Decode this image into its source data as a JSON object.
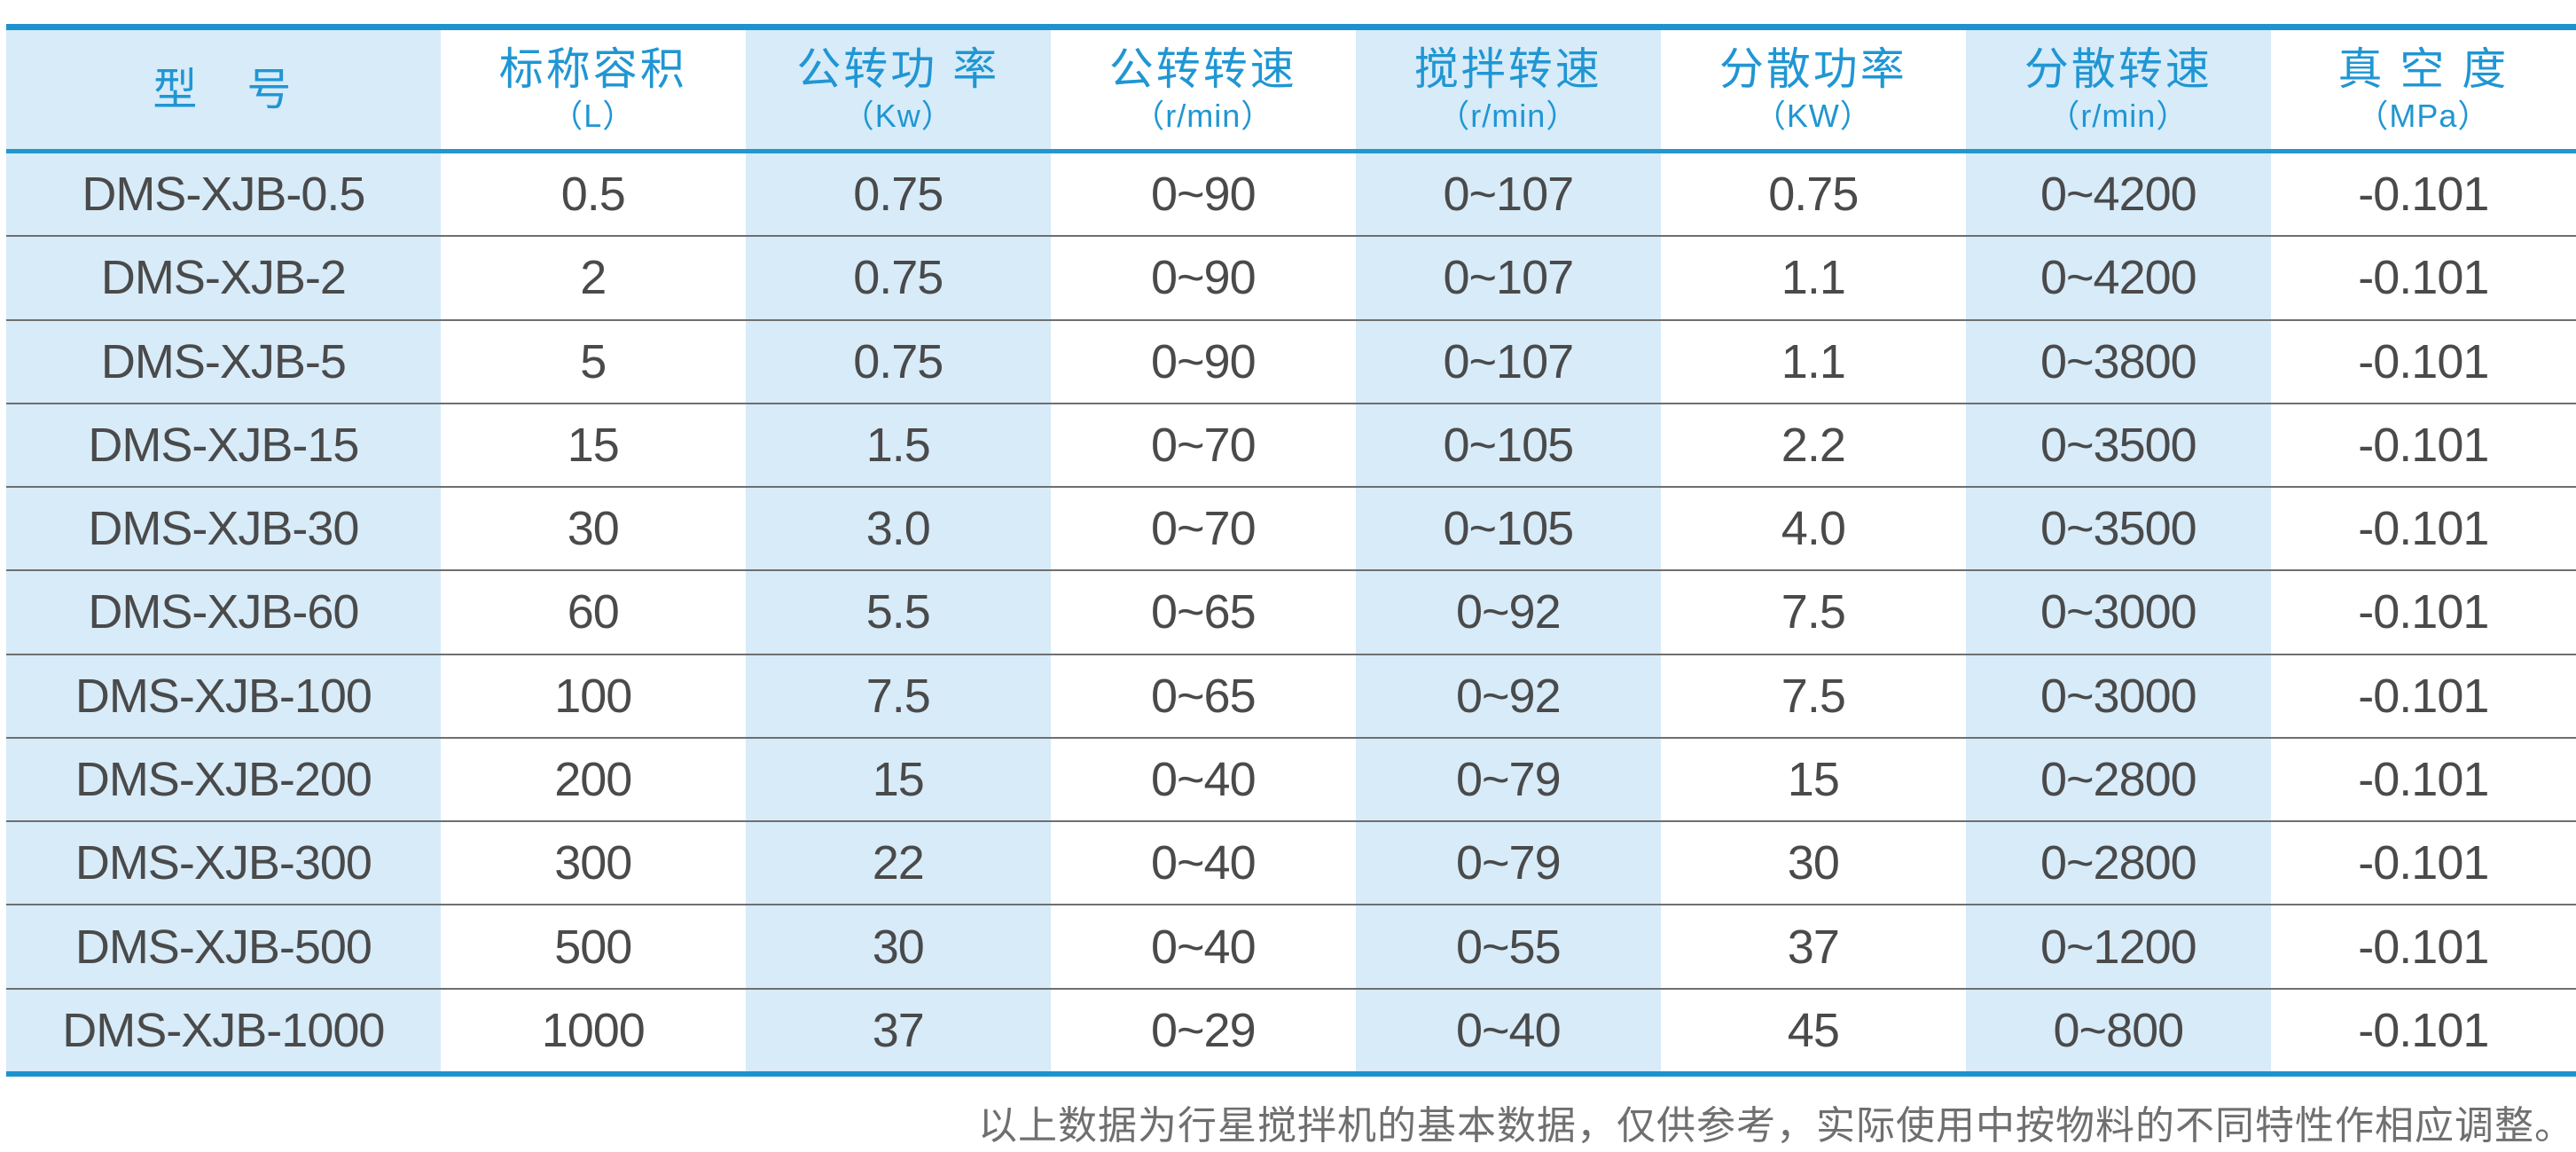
{
  "chart_data": {
    "type": "table",
    "columns": [
      {
        "title": "型　号",
        "unit": ""
      },
      {
        "title": "标称容积",
        "unit": "（L）"
      },
      {
        "title": "公转功 率",
        "unit": "（Kw）"
      },
      {
        "title": "公转转速",
        "unit": "（r/min）"
      },
      {
        "title": "搅拌转速",
        "unit": "（r/min）"
      },
      {
        "title": "分散功率",
        "unit": "（KW）"
      },
      {
        "title": "分散转速",
        "unit": "（r/min）"
      },
      {
        "title": "真 空 度",
        "unit": "（MPa）"
      }
    ],
    "rows": [
      [
        "DMS-XJB-0.5",
        "0.5",
        "0.75",
        "0~90",
        "0~107",
        "0.75",
        "0~4200",
        "-0.101"
      ],
      [
        "DMS-XJB-2",
        "2",
        "0.75",
        "0~90",
        "0~107",
        "1.1",
        "0~4200",
        "-0.101"
      ],
      [
        "DMS-XJB-5",
        "5",
        "0.75",
        "0~90",
        "0~107",
        "1.1",
        "0~3800",
        "-0.101"
      ],
      [
        "DMS-XJB-15",
        "15",
        "1.5",
        "0~70",
        "0~105",
        "2.2",
        "0~3500",
        "-0.101"
      ],
      [
        "DMS-XJB-30",
        "30",
        "3.0",
        "0~70",
        "0~105",
        "4.0",
        "0~3500",
        "-0.101"
      ],
      [
        "DMS-XJB-60",
        "60",
        "5.5",
        "0~65",
        "0~92",
        "7.5",
        "0~3000",
        "-0.101"
      ],
      [
        "DMS-XJB-100",
        "100",
        "7.5",
        "0~65",
        "0~92",
        "7.5",
        "0~3000",
        "-0.101"
      ],
      [
        "DMS-XJB-200",
        "200",
        "15",
        "0~40",
        "0~79",
        "15",
        "0~2800",
        "-0.101"
      ],
      [
        "DMS-XJB-300",
        "300",
        "22",
        "0~40",
        "0~79",
        "30",
        "0~2800",
        "-0.101"
      ],
      [
        "DMS-XJB-500",
        "500",
        "30",
        "0~40",
        "0~55",
        "37",
        "0~1200",
        "-0.101"
      ],
      [
        "DMS-XJB-1000",
        "1000",
        "37",
        "0~29",
        "0~40",
        "45",
        "0~800",
        "-0.101"
      ]
    ]
  },
  "footnote": "以上数据为行星搅拌机的基本数据，仅供参考，实际使用中按物料的不同特性作相应调整。",
  "colors": {
    "accent_blue": "#1d92cf",
    "header_text_blue": "#2096d3",
    "stripe_light_blue": "#d7ebf9",
    "body_text": "#4a4a4a",
    "row_separator": "#6f6f6f",
    "footnote_text": "#6f6f6f"
  }
}
